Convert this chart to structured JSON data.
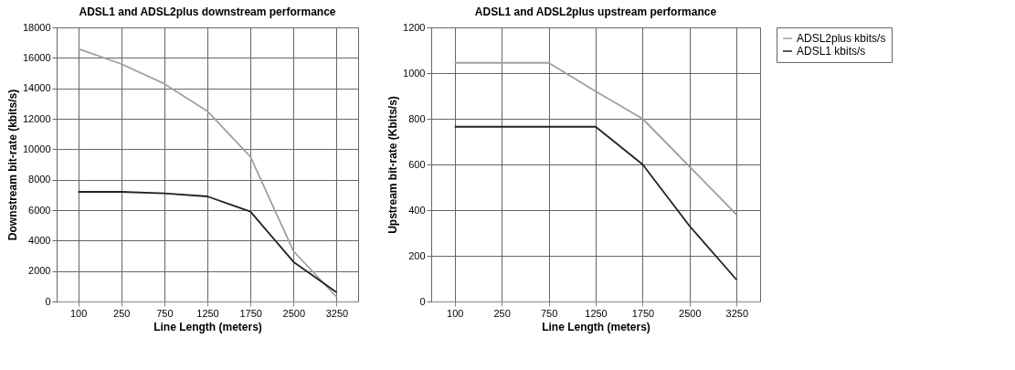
{
  "chart_data": [
    {
      "type": "line",
      "title": "ADSL1 and ADSL2plus downstream performance",
      "xlabel": "Line Length (meters)",
      "ylabel": "Downstream bit-rate (kbits/s)",
      "categories": [
        "100",
        "250",
        "750",
        "1250",
        "1750",
        "2500",
        "3250"
      ],
      "series": [
        {
          "color": "#a0a0a0",
          "values": [
            16600,
            15600,
            14300,
            12500,
            9500,
            3300,
            300
          ]
        },
        {
          "color": "#222222",
          "values": [
            7200,
            7200,
            7100,
            6900,
            5900,
            2600,
            600
          ]
        }
      ],
      "ylim": [
        0,
        18000
      ],
      "yticks": [
        0,
        2000,
        4000,
        6000,
        8000,
        10000,
        12000,
        14000,
        16000,
        18000
      ],
      "grid": true
    },
    {
      "type": "line",
      "title": "ADSL1 and ADSL2plus upstream performance",
      "xlabel": "Line Length (meters)",
      "ylabel": "Upstream bit-rate (Kbits/s)",
      "categories": [
        "100",
        "250",
        "750",
        "1250",
        "1750",
        "2500",
        "3250"
      ],
      "series": [
        {
          "name": "ADSL2plus kbits/s",
          "color": "#a0a0a0",
          "values": [
            1045,
            1045,
            1045,
            920,
            800,
            590,
            380
          ]
        },
        {
          "name": "ADSL1 kbits/s",
          "color": "#222222",
          "values": [
            765,
            765,
            765,
            765,
            600,
            330,
            95
          ]
        }
      ],
      "ylim": [
        0,
        1200
      ],
      "yticks": [
        0,
        200,
        400,
        600,
        800,
        1000,
        1200
      ],
      "grid": true,
      "legend": "right"
    }
  ]
}
